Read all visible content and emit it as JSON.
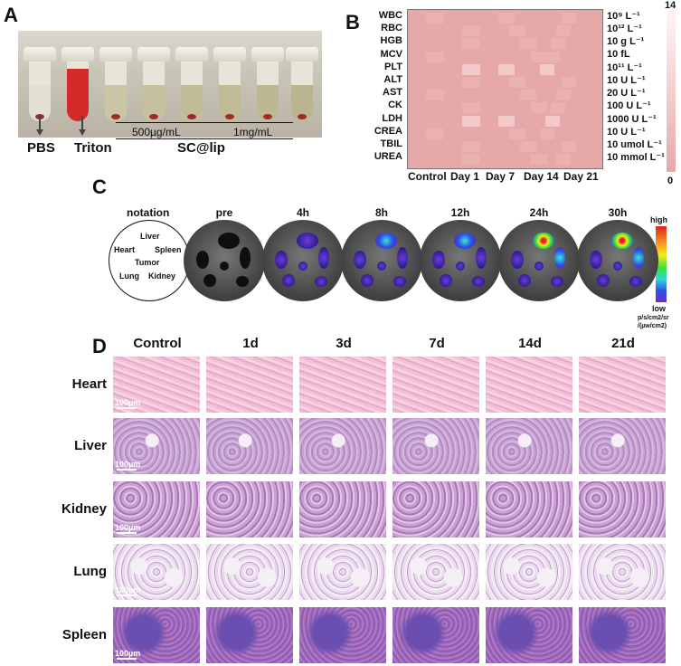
{
  "panels": {
    "a": {
      "letter": "A",
      "labels": {
        "pbs": "PBS",
        "triton": "Triton",
        "conc_low": "500µg/mL",
        "conc_high": "1mg/mL",
        "group": "SC@lip"
      }
    },
    "b": {
      "letter": "B",
      "rows": [
        "WBC",
        "RBC",
        "HGB",
        "MCV",
        "PLT",
        "ALT",
        "AST",
        "CK",
        "LDH",
        "CREA",
        "TBIL",
        "UREA"
      ],
      "units": [
        "10⁹ L⁻¹",
        "10¹² L⁻¹",
        "10 g L⁻¹",
        "10  fL",
        "10¹¹ L⁻¹",
        "10 U L⁻¹",
        "20 U L⁻¹",
        "100 U L⁻¹",
        "1000 U L⁻¹",
        "10 U L⁻¹",
        "10 umol L⁻¹",
        "10 mmol L⁻¹"
      ],
      "x_labels": [
        "Control",
        "Day 1",
        "Day 7",
        "Day 14",
        "Day 21"
      ],
      "colorbar": {
        "max": "14",
        "min": "0"
      }
    },
    "c": {
      "letter": "C",
      "notation_title": "notation",
      "organs": {
        "liver": "Liver",
        "heart": "Heart",
        "spleen": "Spleen",
        "tumor": "Tumor",
        "lung": "Lung",
        "kidney": "Kidney"
      },
      "timepoints": [
        "pre",
        "4h",
        "8h",
        "12h",
        "24h",
        "30h"
      ],
      "scale": {
        "high": "high",
        "low": "low",
        "unit_line1": "p/s/cm2/sr",
        "unit_line2": "/(µw/cm2)"
      }
    },
    "d": {
      "letter": "D",
      "columns": [
        "Control",
        "1d",
        "3d",
        "7d",
        "14d",
        "21d"
      ],
      "rows": [
        "Heart",
        "Liver",
        "Kidney",
        "Lung",
        "Spleen"
      ],
      "scale_bar": "100µm"
    }
  },
  "colors": {
    "heatmap_base": "#e6a8a8",
    "heatmap_light": "#f2c4c4",
    "hist_pink": "#eeb5cf",
    "hist_purple": "#9c6bbf"
  },
  "chart_data": {
    "type": "heatmap",
    "rows": [
      "WBC",
      "RBC",
      "HGB",
      "MCV",
      "PLT",
      "ALT",
      "AST",
      "CK",
      "LDH",
      "CREA",
      "TBIL",
      "UREA"
    ],
    "columns": [
      "Control",
      "Day 1",
      "Day 7",
      "Day 14",
      "Day 21"
    ],
    "colorbar_range": [
      0,
      14
    ]
  }
}
